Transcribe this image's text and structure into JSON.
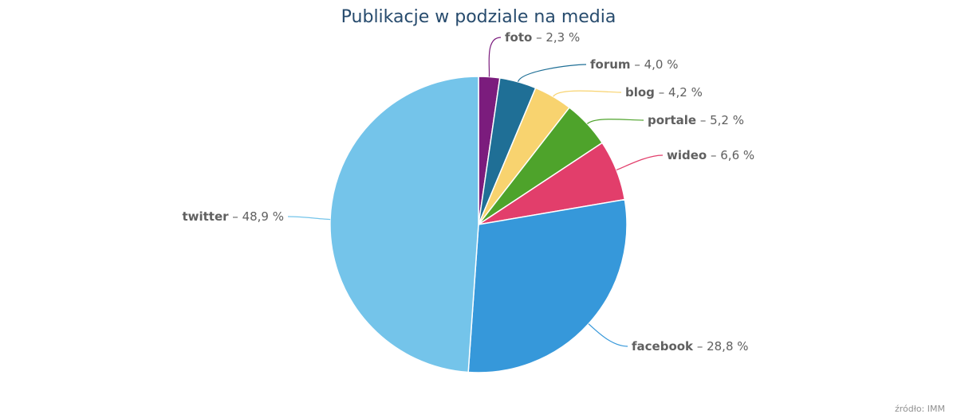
{
  "chart_data": {
    "type": "pie",
    "title": "Publikacje w podziale na media",
    "credit": "źródło: IMM",
    "unit_suffix": " %",
    "slices": [
      {
        "name": "foto",
        "value": 2.3,
        "value_label": "2,3",
        "color": "#7b1c7d"
      },
      {
        "name": "forum",
        "value": 4.0,
        "value_label": "4,0",
        "color": "#1f6f96"
      },
      {
        "name": "blog",
        "value": 4.2,
        "value_label": "4,2",
        "color": "#f8d36f"
      },
      {
        "name": "portale",
        "value": 5.2,
        "value_label": "5,2",
        "color": "#4ea32b"
      },
      {
        "name": "wideo",
        "value": 6.6,
        "value_label": "6,6",
        "color": "#e23e6b"
      },
      {
        "name": "facebook",
        "value": 28.8,
        "value_label": "28,8",
        "color": "#3698da"
      },
      {
        "name": "twitter",
        "value": 48.9,
        "value_label": "48,9",
        "color": "#74c4ea"
      }
    ]
  }
}
